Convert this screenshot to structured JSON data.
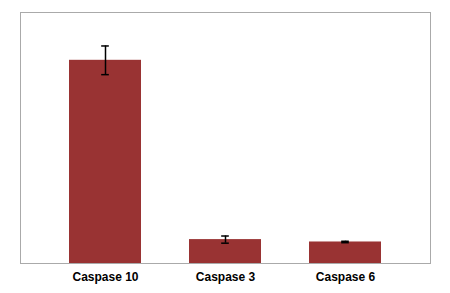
{
  "chart_data": {
    "type": "bar",
    "categories": [
      "Caspase 10",
      "Caspase 3",
      "Caspase 6"
    ],
    "values": [
      85,
      10,
      9
    ],
    "errors": [
      6,
      1.5,
      0.3
    ],
    "color": "#993333",
    "ylim": [
      0,
      105
    ],
    "grid": false,
    "tick_labels": "x"
  }
}
